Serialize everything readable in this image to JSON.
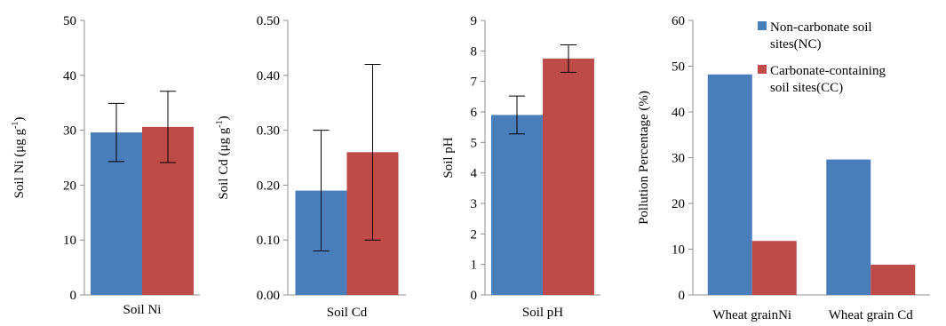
{
  "colors": {
    "nc": "#4a7ebb",
    "cc": "#be4b48",
    "axis": "#8c8c8c",
    "err": "#000000"
  },
  "legend": {
    "nc_line1": "Non-carbonate soil",
    "nc_line2": "sites(NC)",
    "cc_line1": "Carbonate-containing",
    "cc_line2": "soil sites(CC)"
  },
  "chart_data": [
    {
      "type": "bar",
      "categories": [
        "Soil Ni"
      ],
      "ylabel_main": "Soil Ni (μg g",
      "ylabel_sup": "-1",
      "ylabel_end": ")",
      "ylim": [
        0,
        50
      ],
      "yticks": [
        "0",
        "10",
        "20",
        "30",
        "40",
        "50"
      ],
      "series": [
        {
          "key": "nc",
          "values": [
            29.6
          ],
          "err": [
            5.3
          ]
        },
        {
          "key": "cc",
          "values": [
            30.6
          ],
          "err": [
            6.5
          ]
        }
      ]
    },
    {
      "type": "bar",
      "categories": [
        "Soil Cd"
      ],
      "ylabel_main": "Soil Cd (μg g",
      "ylabel_sup": "-1",
      "ylabel_end": ")",
      "ylim": [
        0,
        0.5
      ],
      "yticks": [
        "0.00",
        "0.10",
        "0.20",
        "0.30",
        "0.40",
        "0.50"
      ],
      "series": [
        {
          "key": "nc",
          "values": [
            0.19
          ],
          "err": [
            0.11
          ]
        },
        {
          "key": "cc",
          "values": [
            0.26
          ],
          "err": [
            0.16
          ]
        }
      ]
    },
    {
      "type": "bar",
      "categories": [
        "Soil pH"
      ],
      "ylabel_main": "Soil pH",
      "ylim": [
        0,
        9
      ],
      "yticks": [
        "0",
        "1",
        "2",
        "3",
        "4",
        "5",
        "6",
        "7",
        "8",
        "9"
      ],
      "series": [
        {
          "key": "nc",
          "values": [
            5.9
          ],
          "err": [
            0.62
          ]
        },
        {
          "key": "cc",
          "values": [
            7.75
          ],
          "err": [
            0.45
          ]
        }
      ]
    },
    {
      "type": "bar",
      "categories": [
        "Wheat grainNi",
        "Wheat grain Cd"
      ],
      "ylabel_main": "Pollution Percentage (%)",
      "ylim": [
        0,
        60
      ],
      "yticks": [
        "0",
        "10",
        "20",
        "30",
        "40",
        "50",
        "60"
      ],
      "series": [
        {
          "key": "nc",
          "values": [
            48.2,
            29.6
          ]
        },
        {
          "key": "cc",
          "values": [
            11.8,
            6.6
          ]
        }
      ]
    }
  ]
}
